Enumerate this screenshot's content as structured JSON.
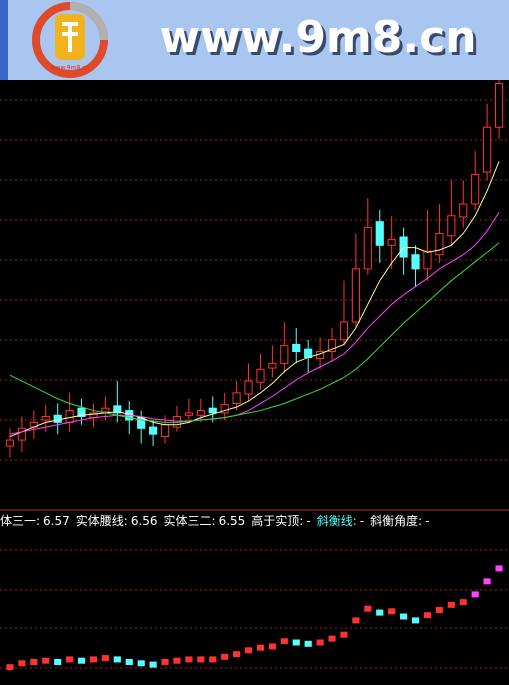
{
  "watermark": "www.9m8.cn",
  "chart_data": [
    {
      "type": "candlestick",
      "up_color": "#ff3232",
      "down_color": "#54ffff",
      "ylim": [
        3,
        6.6
      ],
      "open": [
        3.5,
        3.55,
        3.66,
        3.72,
        3.76,
        3.7,
        3.82,
        3.74,
        3.79,
        3.84,
        3.8,
        3.74,
        3.66,
        3.58,
        3.66,
        3.76,
        3.76,
        3.82,
        3.78,
        3.86,
        3.94,
        4.04,
        4.16,
        4.2,
        4.36,
        4.32,
        4.24,
        4.3,
        4.4,
        4.55,
        5.0,
        5.4,
        5.2,
        5.27,
        5.12,
        5.0,
        5.12,
        5.28,
        5.44,
        5.55,
        5.82,
        6.2
      ],
      "high": [
        3.65,
        3.75,
        3.8,
        3.85,
        3.86,
        3.95,
        3.9,
        3.86,
        3.92,
        4.05,
        3.88,
        3.8,
        3.72,
        3.76,
        3.84,
        3.9,
        3.9,
        3.92,
        3.95,
        4.05,
        4.2,
        4.28,
        4.35,
        4.55,
        4.5,
        4.4,
        4.42,
        4.5,
        4.9,
        5.3,
        5.6,
        5.5,
        5.45,
        5.35,
        5.2,
        5.5,
        5.55,
        5.75,
        5.75,
        6.0,
        6.4,
        6.7
      ],
      "low": [
        3.4,
        3.45,
        3.56,
        3.62,
        3.6,
        3.62,
        3.68,
        3.66,
        3.72,
        3.7,
        3.6,
        3.52,
        3.5,
        3.52,
        3.62,
        3.7,
        3.7,
        3.7,
        3.72,
        3.8,
        3.88,
        3.98,
        4.08,
        4.12,
        4.2,
        4.12,
        4.15,
        4.22,
        4.35,
        4.5,
        4.95,
        5.05,
        5.0,
        4.95,
        4.85,
        4.9,
        5.05,
        5.2,
        5.35,
        5.5,
        5.75,
        6.1
      ],
      "close": [
        3.55,
        3.65,
        3.7,
        3.75,
        3.7,
        3.8,
        3.75,
        3.78,
        3.82,
        3.78,
        3.72,
        3.65,
        3.6,
        3.68,
        3.75,
        3.78,
        3.8,
        3.78,
        3.85,
        3.95,
        4.05,
        4.15,
        4.2,
        4.35,
        4.3,
        4.25,
        4.3,
        4.4,
        4.55,
        5.0,
        5.35,
        5.2,
        5.25,
        5.1,
        5.0,
        5.15,
        5.3,
        5.45,
        5.55,
        5.8,
        6.2,
        6.57
      ],
      "series": [
        {
          "color": "#ffff99",
          "values": [
            3.58,
            3.62,
            3.66,
            3.7,
            3.72,
            3.74,
            3.76,
            3.77,
            3.78,
            3.79,
            3.77,
            3.74,
            3.7,
            3.68,
            3.68,
            3.7,
            3.74,
            3.77,
            3.8,
            3.83,
            3.88,
            3.95,
            4.03,
            4.13,
            4.21,
            4.25,
            4.28,
            4.32,
            4.36,
            4.5,
            4.7,
            4.9,
            5.05,
            5.18,
            5.18,
            5.14,
            5.16,
            5.2,
            5.3,
            5.45,
            5.66,
            5.91
          ]
        },
        {
          "color": "#ff44ff",
          "values": [
            3.6,
            3.62,
            3.64,
            3.66,
            3.68,
            3.7,
            3.72,
            3.74,
            3.75,
            3.76,
            3.76,
            3.75,
            3.73,
            3.72,
            3.71,
            3.71,
            3.72,
            3.73,
            3.74,
            3.76,
            3.8,
            3.86,
            3.92,
            3.99,
            4.06,
            4.12,
            4.17,
            4.22,
            4.28,
            4.38,
            4.5,
            4.6,
            4.7,
            4.78,
            4.85,
            4.92,
            5.0,
            5.06,
            5.12,
            5.2,
            5.32,
            5.48
          ]
        },
        {
          "color": "#33dd33",
          "values": [
            4.1,
            4.05,
            4.0,
            3.95,
            3.9,
            3.86,
            3.83,
            3.8,
            3.78,
            3.76,
            3.74,
            3.72,
            3.71,
            3.7,
            3.7,
            3.71,
            3.72,
            3.73,
            3.74,
            3.76,
            3.78,
            3.8,
            3.83,
            3.86,
            3.9,
            3.94,
            3.98,
            4.03,
            4.08,
            4.15,
            4.24,
            4.34,
            4.44,
            4.54,
            4.63,
            4.72,
            4.81,
            4.9,
            4.98,
            5.06,
            5.14,
            5.22
          ]
        }
      ]
    },
    {
      "type": "marker",
      "ylim": [
        0,
        100
      ],
      "up_color": "#ff3232",
      "down_color": "#54ffff",
      "color": "#ff44ff",
      "indicators": [
        {
          "name": "体三一:",
          "value": 6.57,
          "color": "#ffffff"
        },
        {
          "name": "实体腰线:",
          "value": 6.56,
          "color": "#ffffff"
        },
        {
          "name": "实体三二:",
          "value": 6.55,
          "color": "#ffffff"
        },
        {
          "name": "高于实顶:",
          "value": "-",
          "color": "#ffffff"
        },
        {
          "name": "斜衡线:",
          "value": "-",
          "color": "#54ffff"
        },
        {
          "name": "斜衡角度:",
          "value": "-",
          "color": "#ffffff"
        }
      ],
      "values": [
        6,
        9,
        10,
        11,
        10,
        12,
        11,
        12,
        13,
        12,
        10,
        9,
        8,
        10,
        11,
        12,
        12,
        12,
        14,
        16,
        19,
        21,
        22,
        26,
        25,
        24,
        25,
        28,
        31,
        42,
        51,
        48,
        49,
        45,
        42,
        46,
        50,
        54,
        56,
        62,
        72,
        82
      ]
    }
  ]
}
